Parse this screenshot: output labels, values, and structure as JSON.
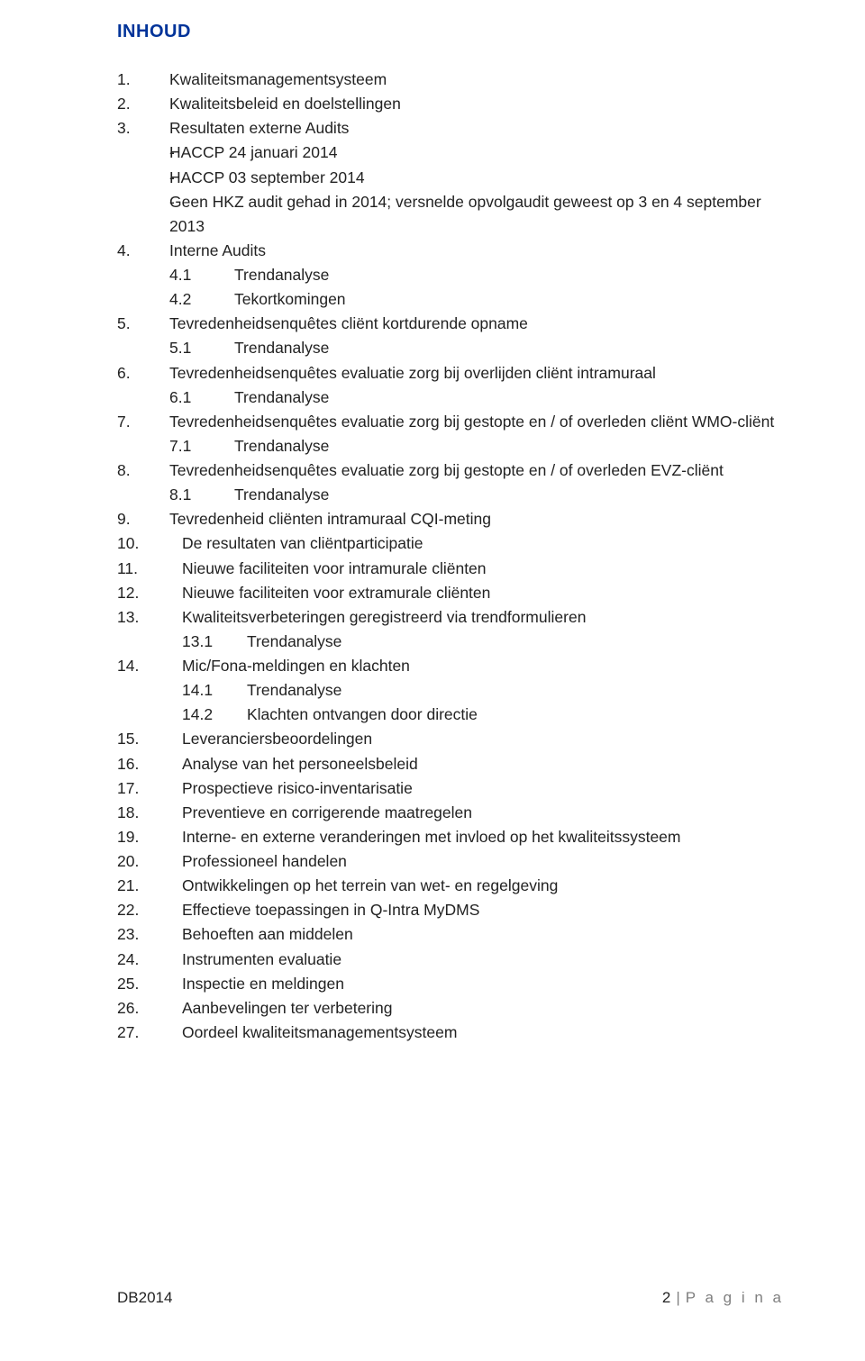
{
  "heading": "INHOUD",
  "items": [
    {
      "text": "Kwaliteitsmanagementsysteem",
      "indent": false
    },
    {
      "text": "Kwaliteitsbeleid en doelstellingen",
      "indent": false
    },
    {
      "text": "Resultaten externe Audits",
      "indent": false,
      "sub_dash": [
        "HACCP 24 januari 2014",
        "HACCP 03 september 2014",
        "Geen HKZ audit gehad in 2014; versnelde opvolgaudit geweest op 3 en 4 september 2013"
      ]
    },
    {
      "text": "Interne Audits",
      "indent": false,
      "sub_num": [
        {
          "n": "4.1",
          "t": "Trendanalyse"
        },
        {
          "n": "4.2",
          "t": "Tekortkomingen"
        }
      ]
    },
    {
      "text": "Tevredenheidsenquêtes cliënt kortdurende opname",
      "indent": false,
      "sub_num": [
        {
          "n": "5.1",
          "t": "Trendanalyse"
        }
      ]
    },
    {
      "text": "Tevredenheidsenquêtes evaluatie zorg bij overlijden cliënt intramuraal",
      "indent": false,
      "sub_num": [
        {
          "n": "6.1",
          "t": "Trendanalyse"
        }
      ]
    },
    {
      "text": "Tevredenheidsenquêtes evaluatie zorg bij gestopte en / of overleden cliënt WMO-cliënt",
      "indent": false,
      "sub_num": [
        {
          "n": "7.1",
          "t": "Trendanalyse"
        }
      ]
    },
    {
      "text": "Tevredenheidsenquêtes evaluatie zorg bij gestopte en / of overleden EVZ-cliënt",
      "indent": false,
      "sub_num": [
        {
          "n": "8.1",
          "t": "Trendanalyse"
        }
      ]
    },
    {
      "text": "Tevredenheid cliënten intramuraal CQI-meting",
      "indent": false
    },
    {
      "text": "De resultaten van cliëntparticipatie",
      "indent": true
    },
    {
      "text": "Nieuwe faciliteiten voor intramurale cliënten",
      "indent": true
    },
    {
      "text": "Nieuwe faciliteiten voor extramurale cliënten",
      "indent": true
    },
    {
      "text": "Kwaliteitsverbeteringen geregistreerd via trendformulieren",
      "indent": true,
      "sub_num": [
        {
          "n": "13.1",
          "t": "Trendanalyse"
        }
      ]
    },
    {
      "text": "Mic/Fona-meldingen en klachten",
      "indent": true,
      "sub_num": [
        {
          "n": "14.1",
          "t": "Trendanalyse"
        },
        {
          "n": "14.2",
          "t": "Klachten ontvangen door directie"
        }
      ]
    },
    {
      "text": "Leveranciersbeoordelingen",
      "indent": true
    },
    {
      "text": "Analyse van het personeelsbeleid",
      "indent": true
    },
    {
      "text": "Prospectieve risico-inventarisatie",
      "indent": true
    },
    {
      "text": "Preventieve en corrigerende maatregelen",
      "indent": true
    },
    {
      "text": "Interne- en externe veranderingen met invloed op het kwaliteitssysteem",
      "indent": true
    },
    {
      "text": "Professioneel handelen",
      "indent": true
    },
    {
      "text": "Ontwikkelingen op het terrein van wet- en regelgeving",
      "indent": true
    },
    {
      "text": "Effectieve toepassingen in Q-Intra MyDMS",
      "indent": true
    },
    {
      "text": "Behoeften aan middelen",
      "indent": true
    },
    {
      "text": "Instrumenten evaluatie",
      "indent": true
    },
    {
      "text": "Inspectie en meldingen",
      "indent": true
    },
    {
      "text": "Aanbevelingen ter verbetering",
      "indent": true
    },
    {
      "text": "Oordeel kwaliteitsmanagementsysteem",
      "indent": true
    }
  ],
  "footer": {
    "left": "DB2014",
    "page_num": "2",
    "sep": "|",
    "word": "P a g i n a"
  },
  "colors": {
    "heading": "#003399",
    "body_text": "#222222",
    "footer_grey": "#7f7f7f",
    "background": "#ffffff"
  },
  "typography": {
    "heading_fontsize_pt": 15,
    "body_fontsize_pt": 13,
    "font_family": "Verdana"
  }
}
